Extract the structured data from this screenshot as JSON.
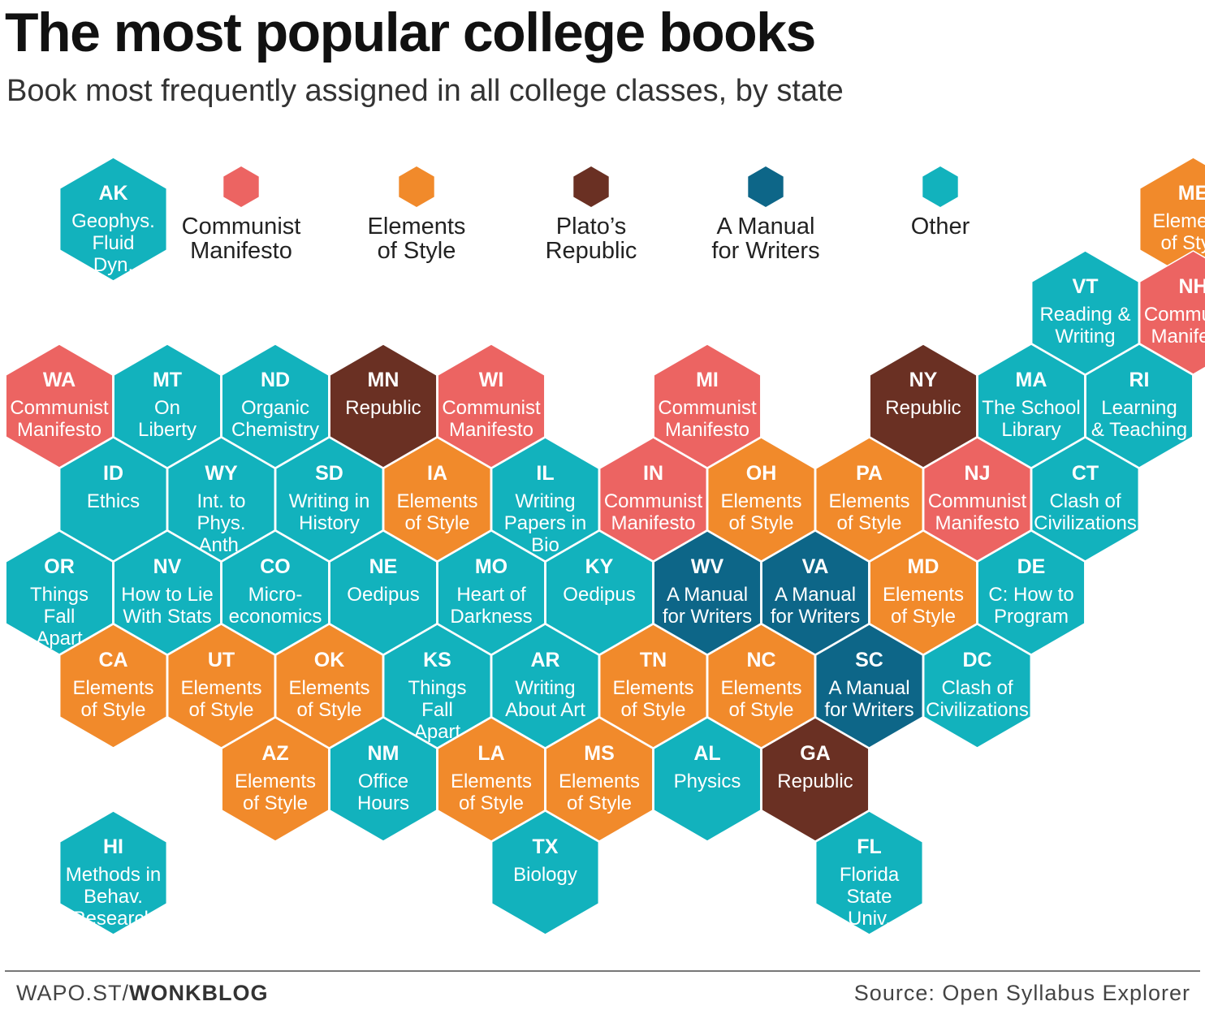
{
  "header": {
    "title": "The most popular college books",
    "subtitle": "Book most frequently assigned in all college classes, by state"
  },
  "colors": {
    "communist": "#ec6462",
    "elements": "#f18a2b",
    "republic": "#6a3023",
    "manual": "#0d6688",
    "other": "#12b2bd"
  },
  "legend": [
    {
      "category": "communist",
      "lines": [
        "Communist",
        "Manifesto"
      ]
    },
    {
      "category": "elements",
      "lines": [
        "Elements",
        "of Style"
      ]
    },
    {
      "category": "republic",
      "lines": [
        "Plato’s",
        "Republic"
      ]
    },
    {
      "category": "manual",
      "lines": [
        "A Manual",
        "for Writers"
      ]
    },
    {
      "category": "other",
      "lines": [
        "Other"
      ]
    }
  ],
  "states": [
    {
      "code": "AK",
      "book": [
        "Geophys.",
        "Fluid",
        "Dyn."
      ],
      "category": "other",
      "col": 0.5,
      "row": 0
    },
    {
      "code": "ME",
      "book": [
        "Elements",
        "of Style"
      ],
      "category": "elements",
      "col": 10.5,
      "row": 0
    },
    {
      "code": "VT",
      "book": [
        "Reading &",
        "Writing"
      ],
      "category": "other",
      "col": 9,
      "row": 1
    },
    {
      "code": "NH",
      "book": [
        "Communist",
        "Manifesto"
      ],
      "category": "communist",
      "col": 10,
      "row": 1
    },
    {
      "code": "WA",
      "book": [
        "Communist",
        "Manifesto"
      ],
      "category": "communist",
      "col": 0,
      "row": 2
    },
    {
      "code": "MT",
      "book": [
        "On",
        "Liberty"
      ],
      "category": "other",
      "col": 1,
      "row": 2
    },
    {
      "code": "ND",
      "book": [
        "Organic",
        "Chemistry"
      ],
      "category": "other",
      "col": 2,
      "row": 2
    },
    {
      "code": "MN",
      "book": [
        "Republic"
      ],
      "category": "republic",
      "col": 3,
      "row": 2
    },
    {
      "code": "WI",
      "book": [
        "Communist",
        "Manifesto"
      ],
      "category": "communist",
      "col": 4,
      "row": 2
    },
    {
      "code": "MI",
      "book": [
        "Communist",
        "Manifesto"
      ],
      "category": "communist",
      "col": 6,
      "row": 2
    },
    {
      "code": "NY",
      "book": [
        "Republic"
      ],
      "category": "republic",
      "col": 8,
      "row": 2
    },
    {
      "code": "MA",
      "book": [
        "The School",
        "Library"
      ],
      "category": "other",
      "col": 9,
      "row": 2
    },
    {
      "code": "RI",
      "book": [
        "Learning",
        "& Teaching"
      ],
      "category": "other",
      "col": 10,
      "row": 2
    },
    {
      "code": "ID",
      "book": [
        "Ethics"
      ],
      "category": "other",
      "col": 0,
      "row": 3
    },
    {
      "code": "WY",
      "book": [
        "Int. to",
        "Phys.",
        "Anth."
      ],
      "category": "other",
      "col": 1,
      "row": 3
    },
    {
      "code": "SD",
      "book": [
        "Writing in",
        "History"
      ],
      "category": "other",
      "col": 2,
      "row": 3
    },
    {
      "code": "IA",
      "book": [
        "Elements",
        "of Style"
      ],
      "category": "elements",
      "col": 3,
      "row": 3
    },
    {
      "code": "IL",
      "book": [
        "Writing",
        "Papers in",
        "Bio"
      ],
      "category": "other",
      "col": 4,
      "row": 3
    },
    {
      "code": "IN",
      "book": [
        "Communist",
        "Manifesto"
      ],
      "category": "communist",
      "col": 5,
      "row": 3
    },
    {
      "code": "OH",
      "book": [
        "Elements",
        "of Style"
      ],
      "category": "elements",
      "col": 6,
      "row": 3
    },
    {
      "code": "PA",
      "book": [
        "Elements",
        "of Style"
      ],
      "category": "elements",
      "col": 7,
      "row": 3
    },
    {
      "code": "NJ",
      "book": [
        "Communist",
        "Manifesto"
      ],
      "category": "communist",
      "col": 8,
      "row": 3
    },
    {
      "code": "CT",
      "book": [
        "Clash of",
        "Civilizations"
      ],
      "category": "other",
      "col": 9,
      "row": 3
    },
    {
      "code": "OR",
      "book": [
        "Things",
        "Fall",
        "Apart"
      ],
      "category": "other",
      "col": 0,
      "row": 4
    },
    {
      "code": "NV",
      "book": [
        "How to Lie",
        "With Stats"
      ],
      "category": "other",
      "col": 1,
      "row": 4
    },
    {
      "code": "CO",
      "book": [
        "Micro-",
        "economics"
      ],
      "category": "other",
      "col": 2,
      "row": 4
    },
    {
      "code": "NE",
      "book": [
        "Oedipus"
      ],
      "category": "other",
      "col": 3,
      "row": 4
    },
    {
      "code": "MO",
      "book": [
        "Heart of",
        "Darkness"
      ],
      "category": "other",
      "col": 4,
      "row": 4
    },
    {
      "code": "KY",
      "book": [
        "Oedipus"
      ],
      "category": "other",
      "col": 5,
      "row": 4
    },
    {
      "code": "WV",
      "book": [
        "A Manual",
        "for Writers"
      ],
      "category": "manual",
      "col": 6,
      "row": 4
    },
    {
      "code": "VA",
      "book": [
        "A Manual",
        "for Writers"
      ],
      "category": "manual",
      "col": 7,
      "row": 4
    },
    {
      "code": "MD",
      "book": [
        "Elements",
        "of Style"
      ],
      "category": "elements",
      "col": 8,
      "row": 4
    },
    {
      "code": "DE",
      "book": [
        "C: How to",
        "Program"
      ],
      "category": "other",
      "col": 9,
      "row": 4
    },
    {
      "code": "CA",
      "book": [
        "Elements",
        "of Style"
      ],
      "category": "elements",
      "col": 0,
      "row": 5
    },
    {
      "code": "UT",
      "book": [
        "Elements",
        "of Style"
      ],
      "category": "elements",
      "col": 1,
      "row": 5
    },
    {
      "code": "OK",
      "book": [
        "Elements",
        "of Style"
      ],
      "category": "elements",
      "col": 2,
      "row": 5
    },
    {
      "code": "KS",
      "book": [
        "Things",
        "Fall",
        "Apart"
      ],
      "category": "other",
      "col": 3,
      "row": 5
    },
    {
      "code": "AR",
      "book": [
        "Writing",
        "About Art"
      ],
      "category": "other",
      "col": 4,
      "row": 5
    },
    {
      "code": "TN",
      "book": [
        "Elements",
        "of Style"
      ],
      "category": "elements",
      "col": 5,
      "row": 5
    },
    {
      "code": "NC",
      "book": [
        "Elements",
        "of Style"
      ],
      "category": "elements",
      "col": 6,
      "row": 5
    },
    {
      "code": "SC",
      "book": [
        "A Manual",
        "for Writers"
      ],
      "category": "manual",
      "col": 7,
      "row": 5
    },
    {
      "code": "DC",
      "book": [
        "Clash of",
        "Civilizations"
      ],
      "category": "other",
      "col": 8,
      "row": 5
    },
    {
      "code": "AZ",
      "book": [
        "Elements",
        "of Style"
      ],
      "category": "elements",
      "col": 2,
      "row": 6
    },
    {
      "code": "NM",
      "book": [
        "Office",
        "Hours"
      ],
      "category": "other",
      "col": 3,
      "row": 6
    },
    {
      "code": "LA",
      "book": [
        "Elements",
        "of Style"
      ],
      "category": "elements",
      "col": 4,
      "row": 6
    },
    {
      "code": "MS",
      "book": [
        "Elements",
        "of Style"
      ],
      "category": "elements",
      "col": 5,
      "row": 6
    },
    {
      "code": "AL",
      "book": [
        "Physics"
      ],
      "category": "other",
      "col": 6,
      "row": 6
    },
    {
      "code": "GA",
      "book": [
        "Republic"
      ],
      "category": "republic",
      "col": 7,
      "row": 6
    },
    {
      "code": "HI",
      "book": [
        "Methods in",
        "Behav.",
        "Research"
      ],
      "category": "other",
      "col": 0,
      "row": 7
    },
    {
      "code": "TX",
      "book": [
        "Biology"
      ],
      "category": "other",
      "col": 4,
      "row": 7
    },
    {
      "code": "FL",
      "book": [
        "Florida",
        "State",
        "Univ."
      ],
      "category": "other",
      "col": 7,
      "row": 7
    }
  ],
  "footer": {
    "brand_prefix": "WAPO.ST/",
    "brand_suffix": "WONKBLOG",
    "source": "Source: Open Syllabus Explorer"
  }
}
